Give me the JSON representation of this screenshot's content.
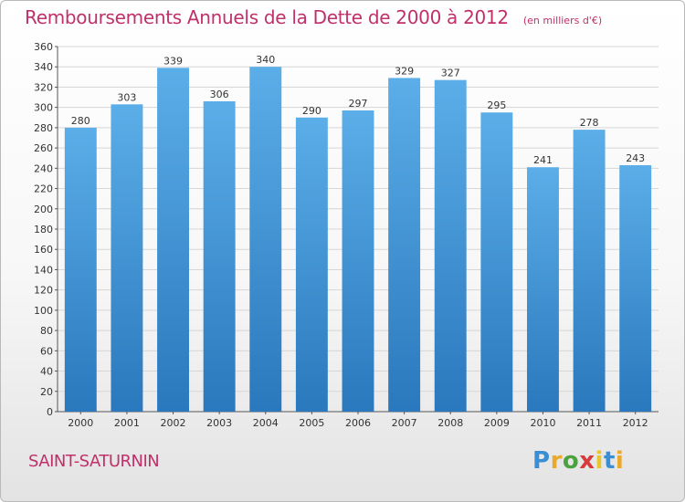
{
  "chart_data": {
    "type": "bar",
    "title": "Remboursements Annuels de la Dette de 2000 à 2012",
    "unit_note": "(en milliers d'€)",
    "categories": [
      "2000",
      "2001",
      "2002",
      "2003",
      "2004",
      "2005",
      "2006",
      "2007",
      "2008",
      "2009",
      "2010",
      "2011",
      "2012"
    ],
    "values": [
      280,
      303,
      339,
      306,
      340,
      290,
      297,
      329,
      327,
      295,
      241,
      278,
      243
    ],
    "ylim": [
      0,
      360
    ],
    "yticks": [
      0,
      20,
      40,
      60,
      80,
      100,
      120,
      140,
      160,
      180,
      200,
      220,
      240,
      260,
      280,
      300,
      320,
      340,
      360
    ],
    "grid": true,
    "colors": {
      "bar_top": "#5baee8",
      "bar_bottom": "#2a78bd",
      "title": "#c0306a",
      "grid": "#d6d6d6"
    }
  },
  "commune": "SAINT-SATURNIN",
  "logo": {
    "letters": [
      "P",
      "r",
      "o",
      "x",
      "i",
      "t",
      "i"
    ],
    "colors": [
      "#3a8fd4",
      "#e8a92c",
      "#4aa33c",
      "#d93a3a",
      "#e8c52c",
      "#3a8fd4",
      "#e8a92c"
    ]
  }
}
